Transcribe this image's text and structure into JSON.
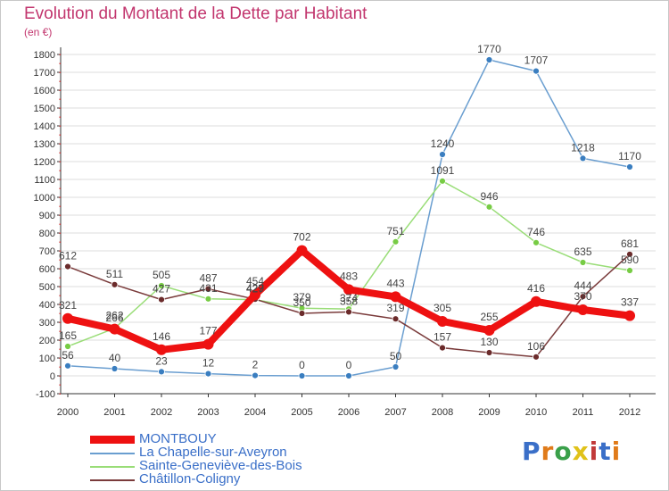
{
  "title": "Evolution du Montant de la Dette par Habitant",
  "unit_label": "(en €)",
  "logo": {
    "text": "Proxiti",
    "colors": [
      "#3a6fc8",
      "#e07b1a",
      "#3aa04a",
      "#e0c21a",
      "#c23a3a",
      "#3a6fc8",
      "#e07b1a"
    ]
  },
  "colors": {
    "title": "#c2366e",
    "axis": "#333333",
    "grid": "#dddddd",
    "legend_text": "#3a6fc8"
  },
  "chart_data": {
    "type": "line",
    "title": "Evolution du Montant de la Dette par Habitant",
    "ylabel": "(en €)",
    "xlabel": "",
    "x": [
      "2000",
      "2001",
      "2002",
      "2003",
      "2004",
      "2005",
      "2006",
      "2007",
      "2008",
      "2009",
      "2010",
      "2011",
      "2012"
    ],
    "ylim": [
      -100,
      1800
    ],
    "yticks": [
      -100,
      0,
      100,
      200,
      300,
      400,
      500,
      600,
      700,
      800,
      900,
      1000,
      1100,
      1200,
      1300,
      1400,
      1500,
      1600,
      1700,
      1800
    ],
    "grid": true,
    "legend_position": "bottom-left",
    "series": [
      {
        "name": "MONTBOUY",
        "color": "#ee1111",
        "marker": "#ee1111",
        "emphasis": true,
        "values": [
          321,
          262,
          146,
          177,
          454,
          702,
          483,
          443,
          305,
          255,
          416,
          370,
          337
        ]
      },
      {
        "name": "La Chapelle-sur-Aveyron",
        "color": "#6a9ed0",
        "marker": "#3a7ec0",
        "emphasis": false,
        "values": [
          56,
          40,
          23,
          12,
          2,
          0,
          0,
          50,
          1240,
          1770,
          1707,
          1218,
          1170
        ]
      },
      {
        "name": "Sainte-Geneviève-des-Bois",
        "color": "#99dd77",
        "marker": "#77cc44",
        "emphasis": false,
        "values": [
          165,
          266,
          505,
          431,
          427,
          379,
          374,
          751,
          1091,
          946,
          746,
          635,
          590
        ]
      },
      {
        "name": "Châtillon-Coligny",
        "color": "#7a3b3b",
        "marker": "#6b2b2b",
        "emphasis": false,
        "values": [
          612,
          511,
          427,
          487,
          429,
          350,
          358,
          319,
          157,
          130,
          106,
          444,
          681
        ]
      }
    ]
  }
}
